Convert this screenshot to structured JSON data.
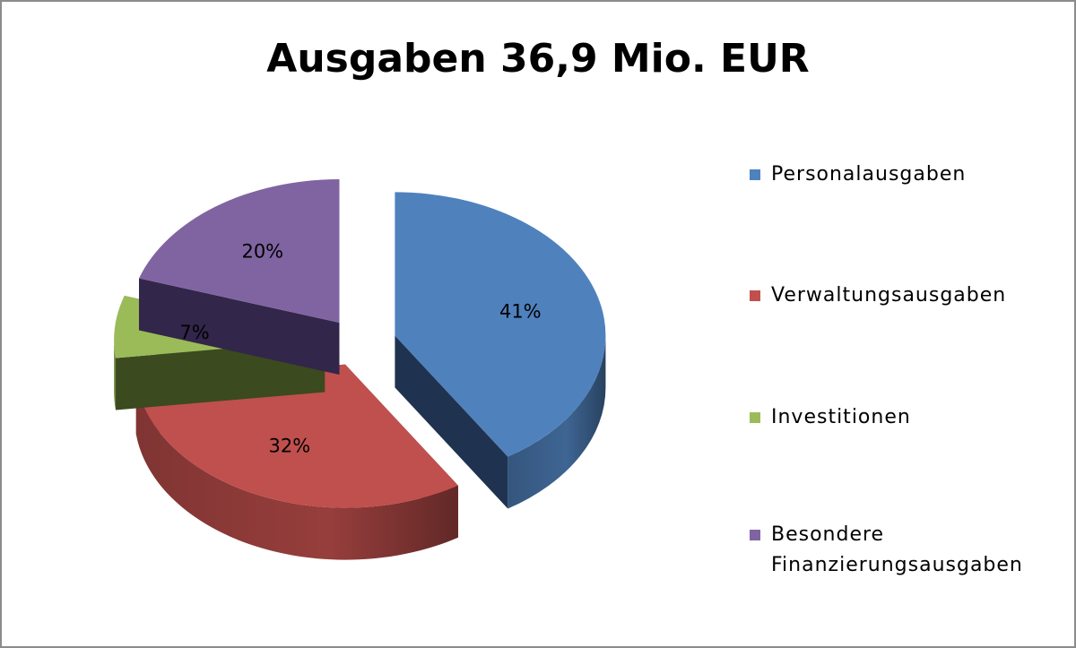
{
  "chart_data": {
    "type": "pie",
    "title": "Ausgaben 36,9 Mio. EUR",
    "legend_position": "right",
    "slices": [
      {
        "label": "Personalausgaben",
        "value": 41,
        "data_label": "41%",
        "color": "#4f81bd"
      },
      {
        "label": "Verwaltungsausgaben",
        "value": 32,
        "data_label": "32%",
        "color": "#c0504d"
      },
      {
        "label": "Investitionen",
        "value": 7,
        "data_label": "7%",
        "color": "#9bbb59"
      },
      {
        "label": "Besondere Finanzierungsausgaben",
        "value": 20,
        "data_label": "20%",
        "color": "#8064a2"
      }
    ]
  }
}
